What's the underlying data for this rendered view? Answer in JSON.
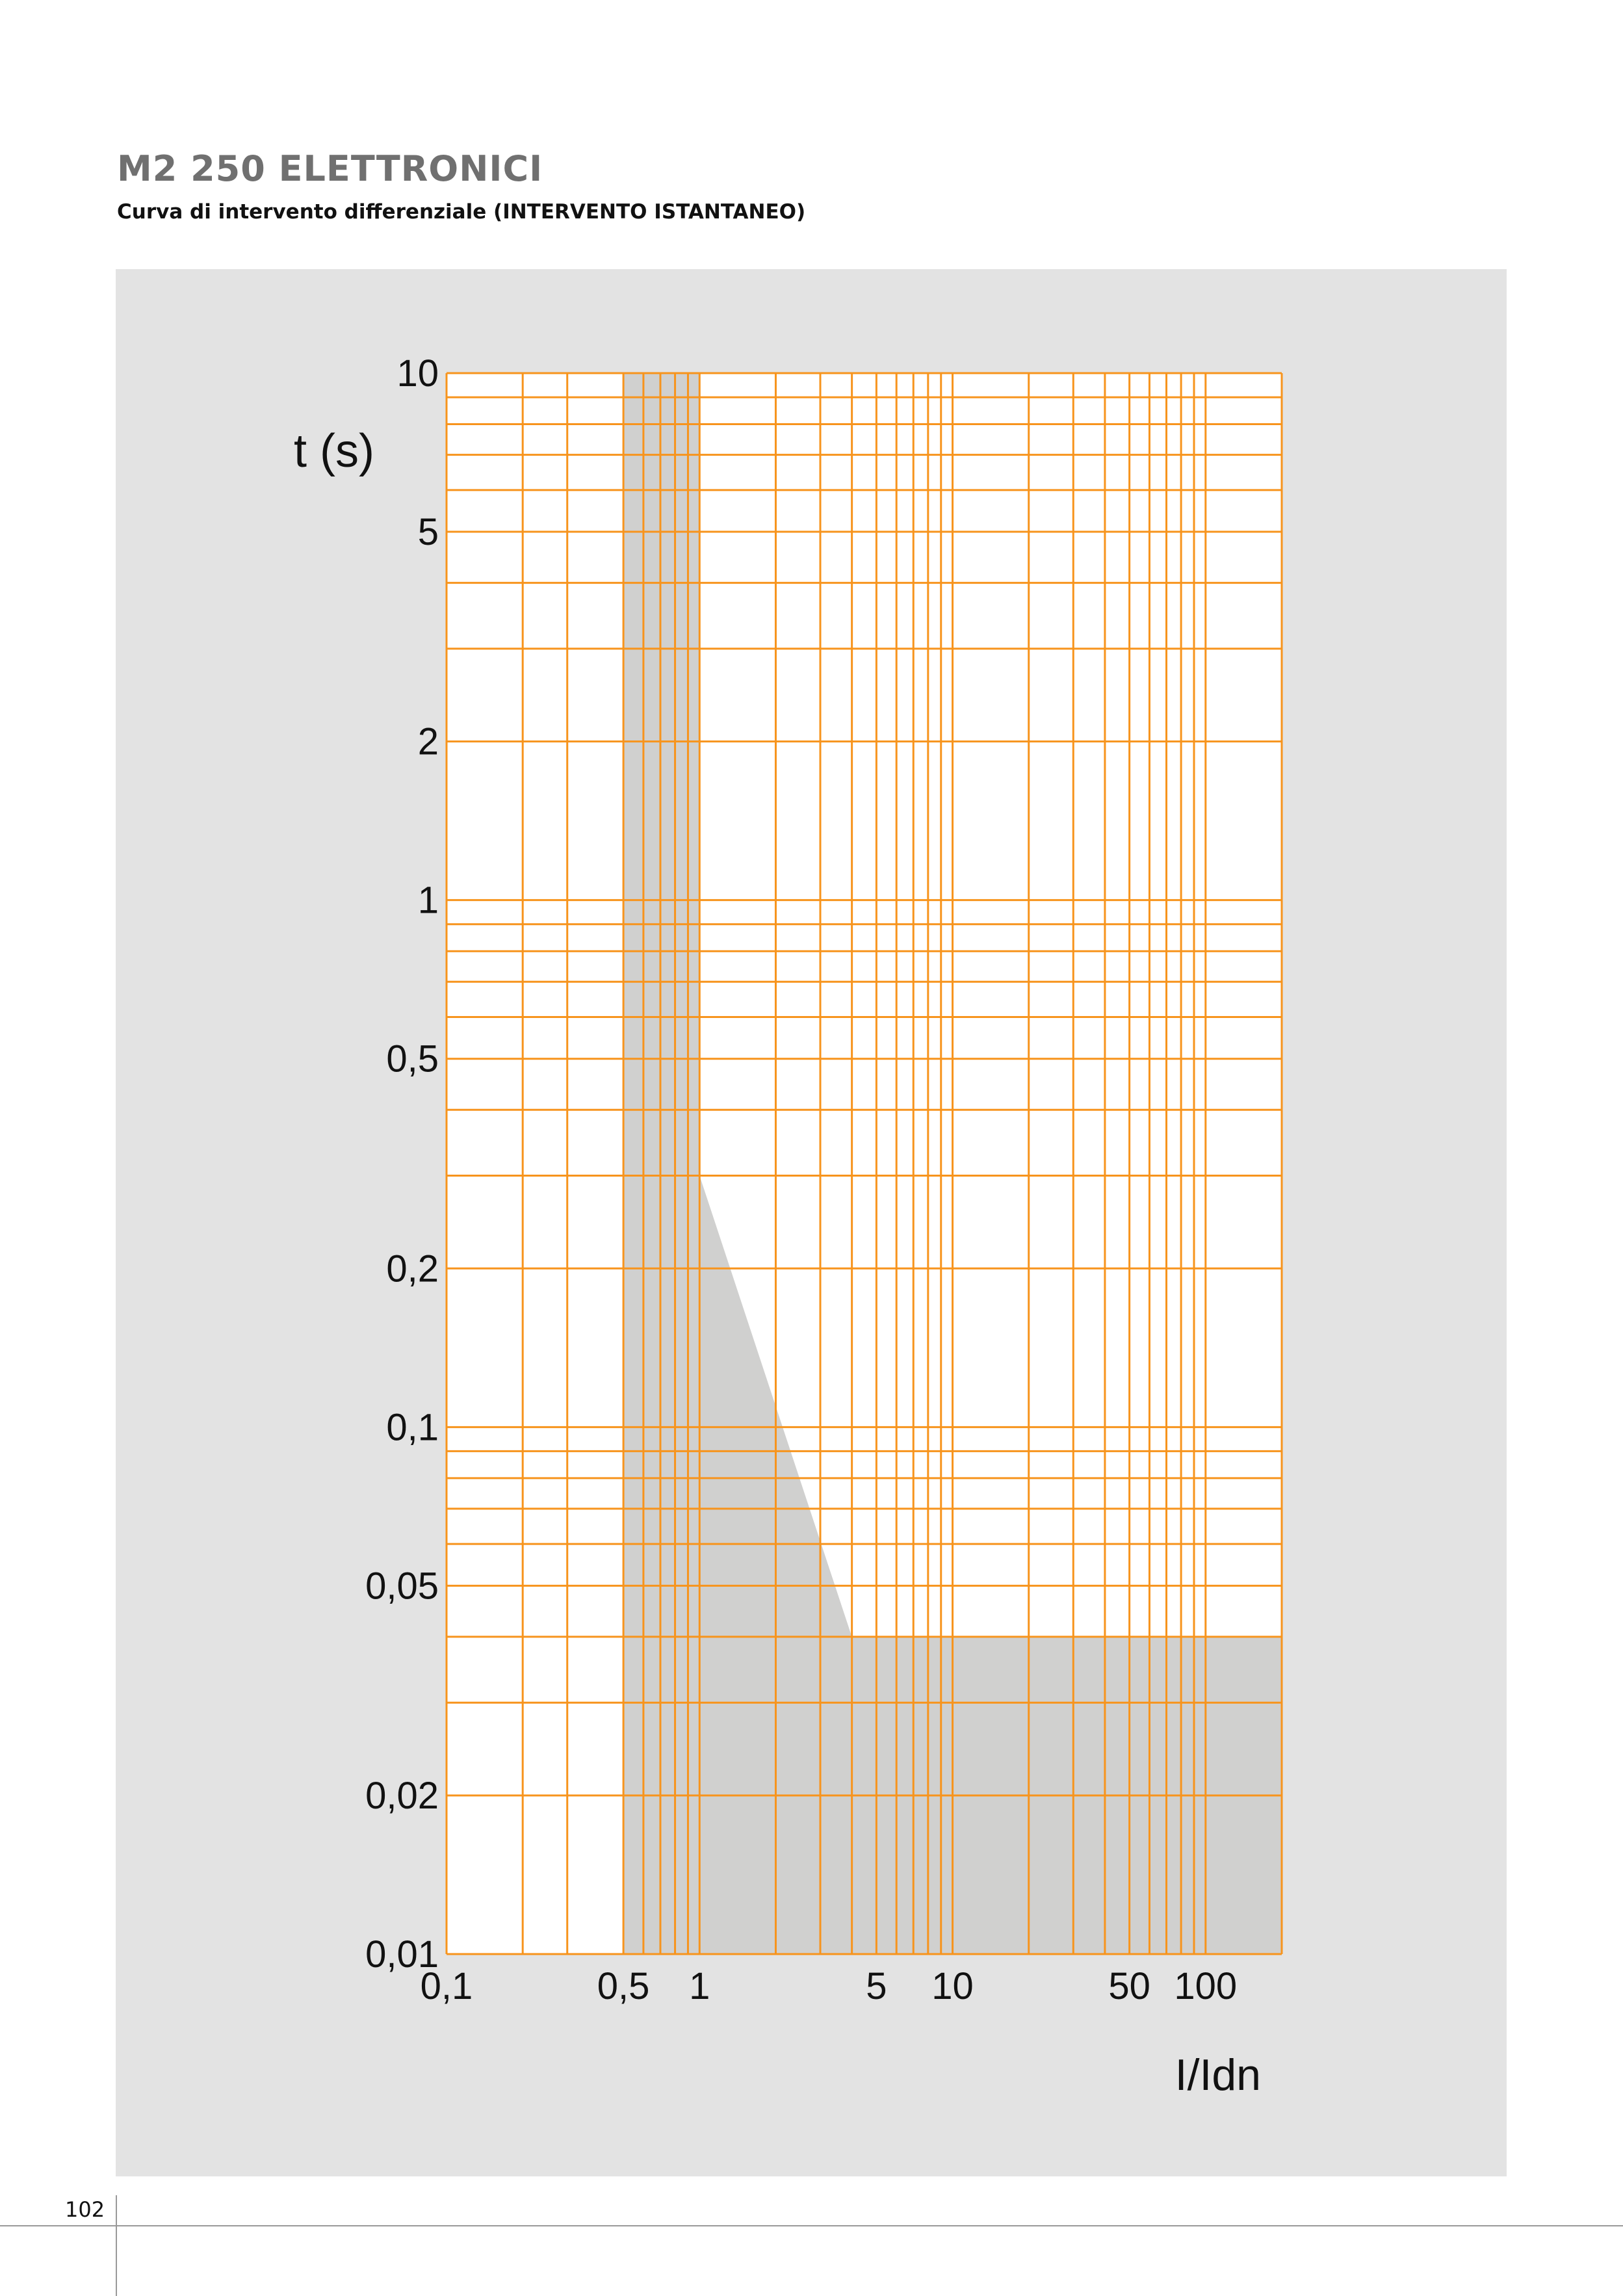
{
  "header": {
    "title": "M2 250 ELETTRONICI",
    "subtitle": "Curva di intervento differenziale (INTERVENTO ISTANTANEO)"
  },
  "page_number": "102",
  "colors": {
    "grid": "#f7941d",
    "panel": "#e3e3e3",
    "plot_bg": "#ffffff",
    "trip_zone": "#d0d0cf"
  },
  "chart_data": {
    "type": "area",
    "title": "",
    "xlabel": "I/Idn",
    "ylabel": "t (s)",
    "xscale": "log",
    "yscale": "log",
    "xlim": [
      0.1,
      200
    ],
    "ylim": [
      0.01,
      10
    ],
    "grid": true,
    "x_ticks": [
      {
        "value": 0.1,
        "label": "0,1"
      },
      {
        "value": 0.5,
        "label": "0,5"
      },
      {
        "value": 1,
        "label": "1"
      },
      {
        "value": 5,
        "label": "5"
      },
      {
        "value": 10,
        "label": "10"
      },
      {
        "value": 50,
        "label": "50"
      },
      {
        "value": 100,
        "label": "100"
      }
    ],
    "y_ticks": [
      {
        "value": 10,
        "label": "10"
      },
      {
        "value": 5,
        "label": "5"
      },
      {
        "value": 2,
        "label": "2"
      },
      {
        "value": 1,
        "label": "1"
      },
      {
        "value": 0.5,
        "label": "0,5"
      },
      {
        "value": 0.2,
        "label": "0,2"
      },
      {
        "value": 0.1,
        "label": "0,1"
      },
      {
        "value": 0.05,
        "label": "0,05"
      },
      {
        "value": 0.02,
        "label": "0,02"
      },
      {
        "value": 0.01,
        "label": "0,01"
      }
    ],
    "x_gridlines": [
      0.1,
      0.2,
      0.3,
      0.5,
      0.6,
      0.7,
      0.8,
      0.9,
      1,
      2,
      3,
      4,
      5,
      6,
      7,
      8,
      9,
      10,
      20,
      30,
      40,
      50,
      60,
      70,
      80,
      90,
      100,
      200
    ],
    "y_gridlines": [
      10,
      9,
      8,
      7,
      6,
      5,
      4,
      3,
      2,
      1,
      0.9,
      0.8,
      0.7,
      0.6,
      0.5,
      0.4,
      0.3,
      0.2,
      0.1,
      0.09,
      0.08,
      0.07,
      0.06,
      0.05,
      0.04,
      0.03,
      0.02,
      0.01
    ],
    "trip_zone": {
      "lower_bound": [
        [
          0.5,
          10
        ],
        [
          0.5,
          0.01
        ],
        [
          200,
          0.01
        ],
        [
          200,
          0.04
        ],
        [
          4,
          0.04
        ],
        [
          1,
          0.3
        ],
        [
          1,
          10
        ]
      ]
    }
  }
}
